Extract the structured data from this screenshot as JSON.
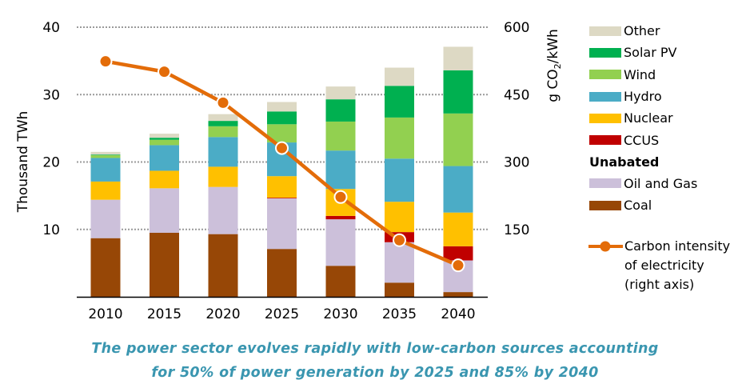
{
  "chart_data": {
    "type": "bar",
    "subtype": "stacked-bar-with-line-secondary-axis",
    "categories": [
      "2010",
      "2015",
      "2020",
      "2025",
      "2030",
      "2035",
      "2040"
    ],
    "ylabel": "Thousand TWh",
    "ylabel_right": "g CO2/kWh",
    "ylim": [
      0,
      40
    ],
    "yticks": [
      10,
      20,
      30,
      40
    ],
    "ylim_right": [
      0,
      600
    ],
    "yticks_right": [
      150,
      300,
      450,
      600
    ],
    "grid": "horizontal-dotted",
    "legend_position": "right",
    "series": [
      {
        "name": "Coal",
        "key": "coal",
        "color": "#974706",
        "group": "Unabated",
        "values": [
          8.7,
          9.5,
          9.3,
          7.1,
          4.6,
          2.1,
          0.7
        ]
      },
      {
        "name": "Oil and Gas",
        "key": "oilgas",
        "color": "#ccc0da",
        "group": "Unabated",
        "values": [
          5.7,
          6.6,
          7.0,
          7.5,
          6.9,
          6.0,
          4.7
        ]
      },
      {
        "name": "CCUS",
        "key": "ccus",
        "color": "#c00000",
        "values": [
          0,
          0,
          0,
          0.1,
          0.5,
          1.5,
          2.1
        ]
      },
      {
        "name": "Nuclear",
        "key": "nuclear",
        "color": "#ffc000",
        "values": [
          2.7,
          2.6,
          3.0,
          3.2,
          4.0,
          4.5,
          5.0
        ]
      },
      {
        "name": "Hydro",
        "key": "hydro",
        "color": "#4bacc6",
        "values": [
          3.5,
          3.8,
          4.4,
          5.0,
          5.7,
          6.4,
          6.9
        ]
      },
      {
        "name": "Wind",
        "key": "wind",
        "color": "#92d050",
        "values": [
          0.4,
          0.8,
          1.6,
          2.7,
          4.3,
          6.1,
          7.8
        ]
      },
      {
        "name": "Solar PV",
        "key": "solar",
        "color": "#00b050",
        "values": [
          0.1,
          0.3,
          0.8,
          1.9,
          3.3,
          4.7,
          6.4
        ]
      },
      {
        "name": "Other",
        "key": "other",
        "color": "#ddd9c4",
        "values": [
          0.4,
          0.6,
          1.0,
          1.4,
          1.9,
          2.7,
          3.5
        ]
      }
    ],
    "line_series": {
      "name": "Carbon intensity of electricity (right axis)",
      "axis": "right",
      "color": "#e36c09",
      "values": [
        524,
        501,
        432,
        331,
        222,
        126,
        70
      ]
    }
  },
  "axes": {
    "left_title": "Thousand TWh",
    "right_title_prefix": "g CO",
    "right_title_sub": "2",
    "right_title_suffix": "/kWh"
  },
  "legend": {
    "items_top": [
      {
        "label": "Other",
        "color": "#ddd9c4"
      },
      {
        "label": "Solar PV",
        "color": "#00b050"
      },
      {
        "label": "Wind",
        "color": "#92d050"
      },
      {
        "label": "Hydro",
        "color": "#4bacc6"
      },
      {
        "label": "Nuclear",
        "color": "#ffc000"
      },
      {
        "label": "CCUS",
        "color": "#c00000"
      }
    ],
    "heading": "Unabated",
    "items_bottom": [
      {
        "label": "Oil and Gas",
        "color": "#ccc0da"
      },
      {
        "label": "Coal",
        "color": "#974706"
      }
    ],
    "line_label": "Carbon intensity\nof electricity\n(right axis)"
  },
  "caption": {
    "line1": "The power sector evolves rapidly with low-carbon sources accounting",
    "line2": "for 50% of power generation by 2025 and 85% by 2040"
  }
}
